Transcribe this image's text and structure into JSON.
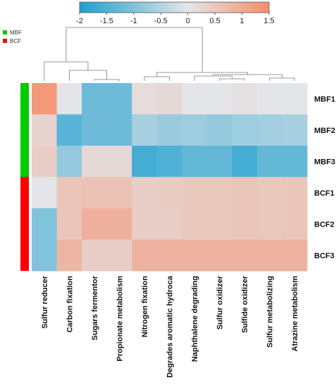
{
  "chart_data": {
    "type": "heatmap",
    "rows": [
      "MBF1",
      "MBF2",
      "MBF3",
      "BCF1",
      "BCF2",
      "BCF3"
    ],
    "columns": [
      "Sulfur reducer",
      "Carbon fixation",
      "Sugars fermentor",
      "Propionate metabolism",
      "Nitrogen fixation",
      "Degrades aromatic hydroca",
      "Naphthalene degrading",
      "Sulfur oxidizer",
      "Sulfide oxidizer",
      "Sulfur metabolizing",
      "Atrazine metabolism"
    ],
    "values": [
      [
        1.3,
        0.0,
        -1.2,
        -1.2,
        0.15,
        0.2,
        0.0,
        0.0,
        0.1,
        0.0,
        0.0
      ],
      [
        0.3,
        -1.4,
        -1.2,
        -1.2,
        -0.6,
        -0.75,
        -0.7,
        -0.8,
        -0.7,
        -0.65,
        -0.6
      ],
      [
        0.4,
        -0.8,
        0.2,
        0.2,
        -1.6,
        -1.5,
        -1.3,
        -1.3,
        -1.6,
        -1.3,
        -1.3
      ],
      [
        0.0,
        0.55,
        0.6,
        0.6,
        0.4,
        0.45,
        0.5,
        0.5,
        0.55,
        0.5,
        0.55
      ],
      [
        -1.0,
        0.55,
        0.9,
        0.9,
        0.4,
        0.4,
        0.5,
        0.5,
        0.55,
        0.5,
        0.55
      ],
      [
        -1.0,
        0.8,
        0.4,
        0.4,
        0.85,
        0.85,
        0.85,
        0.85,
        0.85,
        0.85,
        0.85
      ]
    ],
    "scale": {
      "min": -2,
      "max": 1.5,
      "ticks": [
        "-2",
        "-1.5",
        "-1",
        "-0.5",
        "0",
        "0.5",
        "1",
        "1.5"
      ],
      "low_color": "#1e9fcf",
      "mid_color": "#e3e5e8",
      "high_color": "#f58d69",
      "placement": "top-center"
    },
    "groups": [
      {
        "label": "MBF",
        "color": "#00cc00",
        "rows": [
          0,
          1,
          2
        ]
      },
      {
        "label": "BCF",
        "color": "#ff0000",
        "rows": [
          3,
          4,
          5
        ]
      }
    ],
    "legend_placement": "top-left",
    "column_dendrogram": true
  }
}
